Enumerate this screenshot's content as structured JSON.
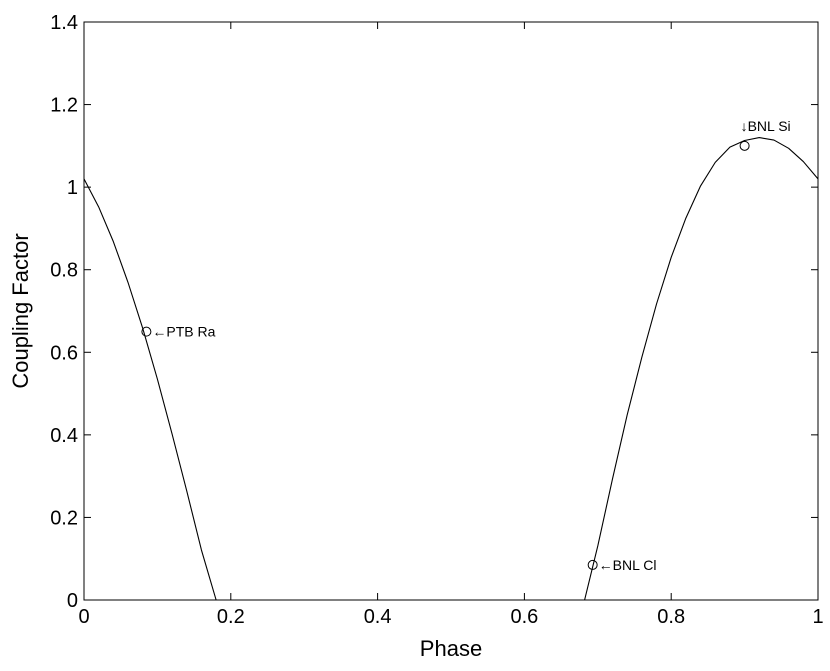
{
  "chart_data": {
    "type": "line",
    "title": "",
    "xlabel": "Phase",
    "ylabel": "Coupling Factor",
    "xlim": [
      0,
      1
    ],
    "ylim": [
      0,
      1.4
    ],
    "xticks": [
      "0",
      "0.2",
      "0.4",
      "0.6",
      "0.8",
      "1"
    ],
    "yticks": [
      "0",
      "0.2",
      "0.4",
      "0.6",
      "0.8",
      "1",
      "1.2",
      "1.4"
    ],
    "grid": false,
    "line_color": "#000000",
    "series": [
      {
        "x": [
          0.0,
          0.02,
          0.04,
          0.06,
          0.08,
          0.1,
          0.12,
          0.14,
          0.16,
          0.18,
          0.182
        ],
        "y": [
          1.02,
          0.952,
          0.868,
          0.769,
          0.658,
          0.535,
          0.402,
          0.264,
          0.121,
          0.0,
          0.0
        ]
      },
      {
        "x": [
          0.682,
          0.7,
          0.72,
          0.74,
          0.76,
          0.78,
          0.8,
          0.82,
          0.84,
          0.86,
          0.88,
          0.9,
          0.92,
          0.94,
          0.96,
          0.98,
          1.0
        ],
        "y": [
          0.0,
          0.131,
          0.293,
          0.448,
          0.588,
          0.717,
          0.83,
          0.925,
          1.003,
          1.06,
          1.097,
          1.113,
          1.12,
          1.114,
          1.094,
          1.062,
          1.02
        ]
      }
    ],
    "markers": [
      {
        "x": 0.085,
        "y": 0.65,
        "label": "←PTB Ra",
        "placement": "right"
      },
      {
        "x": 0.693,
        "y": 0.085,
        "label": "←BNL Cl",
        "placement": "right"
      },
      {
        "x": 0.9,
        "y": 1.1,
        "label": "↓BNL Si",
        "placement": "above"
      }
    ]
  }
}
